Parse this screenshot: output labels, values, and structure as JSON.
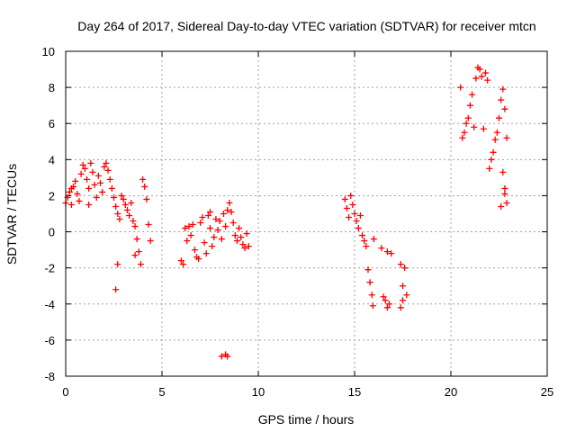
{
  "chart_data": {
    "type": "scatter",
    "title": "Day 264 of 2017, Sidereal Day-to-day VTEC variation (SDTVAR) for receiver mtcn",
    "xlabel": "GPS time / hours",
    "ylabel": "SDTVAR / TECUs",
    "xlim": [
      0,
      25
    ],
    "ylim": [
      -8,
      10
    ],
    "xticks": [
      0,
      5,
      10,
      15,
      20,
      25
    ],
    "yticks": [
      -8,
      -6,
      -4,
      -2,
      0,
      2,
      4,
      6,
      8,
      10
    ],
    "grid": true,
    "marker": "+",
    "series": [
      {
        "name": "SDTVAR",
        "color": "#ff0000",
        "points": [
          [
            0.0,
            1.6
          ],
          [
            0.1,
            1.9
          ],
          [
            0.2,
            2.2
          ],
          [
            0.3,
            1.5
          ],
          [
            0.4,
            2.5
          ],
          [
            0.5,
            2.8
          ],
          [
            0.6,
            2.1
          ],
          [
            0.7,
            1.7
          ],
          [
            0.8,
            3.2
          ],
          [
            0.9,
            3.7
          ],
          [
            1.0,
            3.5
          ],
          [
            1.1,
            2.9
          ],
          [
            1.2,
            2.4
          ],
          [
            1.3,
            3.8
          ],
          [
            1.4,
            3.3
          ],
          [
            1.5,
            2.6
          ],
          [
            1.6,
            1.9
          ],
          [
            1.7,
            3.1
          ],
          [
            1.8,
            2.7
          ],
          [
            1.9,
            2.2
          ],
          [
            2.0,
            3.6
          ],
          [
            2.1,
            3.8
          ],
          [
            2.2,
            3.4
          ],
          [
            2.3,
            2.9
          ],
          [
            2.4,
            2.4
          ],
          [
            2.5,
            1.9
          ],
          [
            2.6,
            1.4
          ],
          [
            2.7,
            1.0
          ],
          [
            2.8,
            0.7
          ],
          [
            2.9,
            2.0
          ],
          [
            3.0,
            1.8
          ],
          [
            3.1,
            1.5
          ],
          [
            3.2,
            1.2
          ],
          [
            3.3,
            0.9
          ],
          [
            3.4,
            1.6
          ],
          [
            3.5,
            0.6
          ],
          [
            3.6,
            0.3
          ],
          [
            3.7,
            -0.4
          ],
          [
            3.8,
            -1.1
          ],
          [
            3.9,
            -1.8
          ],
          [
            4.0,
            2.9
          ],
          [
            4.1,
            2.5
          ],
          [
            4.2,
            1.8
          ],
          [
            4.3,
            0.4
          ],
          [
            4.4,
            -0.5
          ],
          [
            3.6,
            -1.3
          ],
          [
            2.7,
            -1.8
          ],
          [
            2.6,
            -3.2
          ],
          [
            1.2,
            1.5
          ],
          [
            0.3,
            2.4
          ],
          [
            6.0,
            -1.6
          ],
          [
            6.1,
            -1.8
          ],
          [
            6.2,
            0.2
          ],
          [
            6.3,
            -0.5
          ],
          [
            6.4,
            0.3
          ],
          [
            6.5,
            -0.2
          ],
          [
            6.6,
            0.4
          ],
          [
            6.7,
            -1.0
          ],
          [
            6.8,
            -1.4
          ],
          [
            6.9,
            -1.5
          ],
          [
            7.0,
            0.5
          ],
          [
            7.1,
            0.8
          ],
          [
            7.2,
            -0.6
          ],
          [
            7.3,
            -1.2
          ],
          [
            7.4,
            0.9
          ],
          [
            7.5,
            1.1
          ],
          [
            7.6,
            -0.8
          ],
          [
            7.7,
            -0.3
          ],
          [
            7.8,
            0.7
          ],
          [
            7.9,
            0.1
          ],
          [
            8.0,
            0.6
          ],
          [
            8.1,
            -0.4
          ],
          [
            8.2,
            1.0
          ],
          [
            8.3,
            0.3
          ],
          [
            8.4,
            1.2
          ],
          [
            8.5,
            1.6
          ],
          [
            8.6,
            1.1
          ],
          [
            8.7,
            0.5
          ],
          [
            8.8,
            -0.2
          ],
          [
            8.9,
            -0.5
          ],
          [
            9.0,
            0.2
          ],
          [
            9.1,
            -0.3
          ],
          [
            9.2,
            -0.7
          ],
          [
            9.3,
            -0.9
          ],
          [
            9.4,
            -0.1
          ],
          [
            9.5,
            -0.8
          ],
          [
            8.3,
            -6.8
          ],
          [
            8.1,
            -6.9
          ],
          [
            8.4,
            -6.9
          ],
          [
            7.5,
            0.2
          ],
          [
            14.5,
            1.8
          ],
          [
            14.6,
            1.3
          ],
          [
            14.7,
            0.8
          ],
          [
            14.8,
            2.0
          ],
          [
            14.9,
            1.5
          ],
          [
            15.0,
            1.0
          ],
          [
            15.1,
            0.6
          ],
          [
            15.2,
            0.2
          ],
          [
            15.3,
            0.9
          ],
          [
            15.4,
            -0.2
          ],
          [
            15.5,
            -0.5
          ],
          [
            15.6,
            -0.8
          ],
          [
            15.7,
            -2.1
          ],
          [
            15.8,
            -2.8
          ],
          [
            15.9,
            -3.5
          ],
          [
            15.95,
            -4.1
          ],
          [
            16.0,
            -0.4
          ],
          [
            16.5,
            -3.6
          ],
          [
            16.6,
            -3.8
          ],
          [
            16.7,
            -4.2
          ],
          [
            16.8,
            -4.0
          ],
          [
            16.4,
            -0.9
          ],
          [
            16.7,
            -1.1
          ],
          [
            16.9,
            -1.2
          ],
          [
            17.4,
            -4.2
          ],
          [
            17.5,
            -3.8
          ],
          [
            17.5,
            -3.0
          ],
          [
            17.6,
            -2.0
          ],
          [
            17.4,
            -1.8
          ],
          [
            17.7,
            -3.5
          ],
          [
            20.5,
            8.0
          ],
          [
            20.6,
            5.2
          ],
          [
            20.7,
            5.5
          ],
          [
            20.8,
            6.0
          ],
          [
            20.9,
            6.3
          ],
          [
            21.0,
            7.0
          ],
          [
            21.1,
            7.6
          ],
          [
            21.2,
            5.8
          ],
          [
            21.3,
            8.5
          ],
          [
            21.4,
            9.1
          ],
          [
            21.5,
            9.0
          ],
          [
            21.6,
            8.6
          ],
          [
            21.7,
            5.7
          ],
          [
            21.8,
            8.8
          ],
          [
            21.9,
            8.4
          ],
          [
            22.0,
            3.5
          ],
          [
            22.1,
            4.0
          ],
          [
            22.2,
            4.4
          ],
          [
            22.3,
            5.1
          ],
          [
            22.4,
            5.5
          ],
          [
            22.5,
            6.3
          ],
          [
            22.6,
            7.3
          ],
          [
            22.7,
            7.9
          ],
          [
            22.8,
            6.8
          ],
          [
            22.9,
            5.2
          ],
          [
            22.7,
            3.3
          ],
          [
            22.8,
            2.4
          ],
          [
            22.9,
            1.6
          ],
          [
            22.8,
            2.1
          ],
          [
            22.6,
            1.4
          ]
        ]
      }
    ]
  }
}
